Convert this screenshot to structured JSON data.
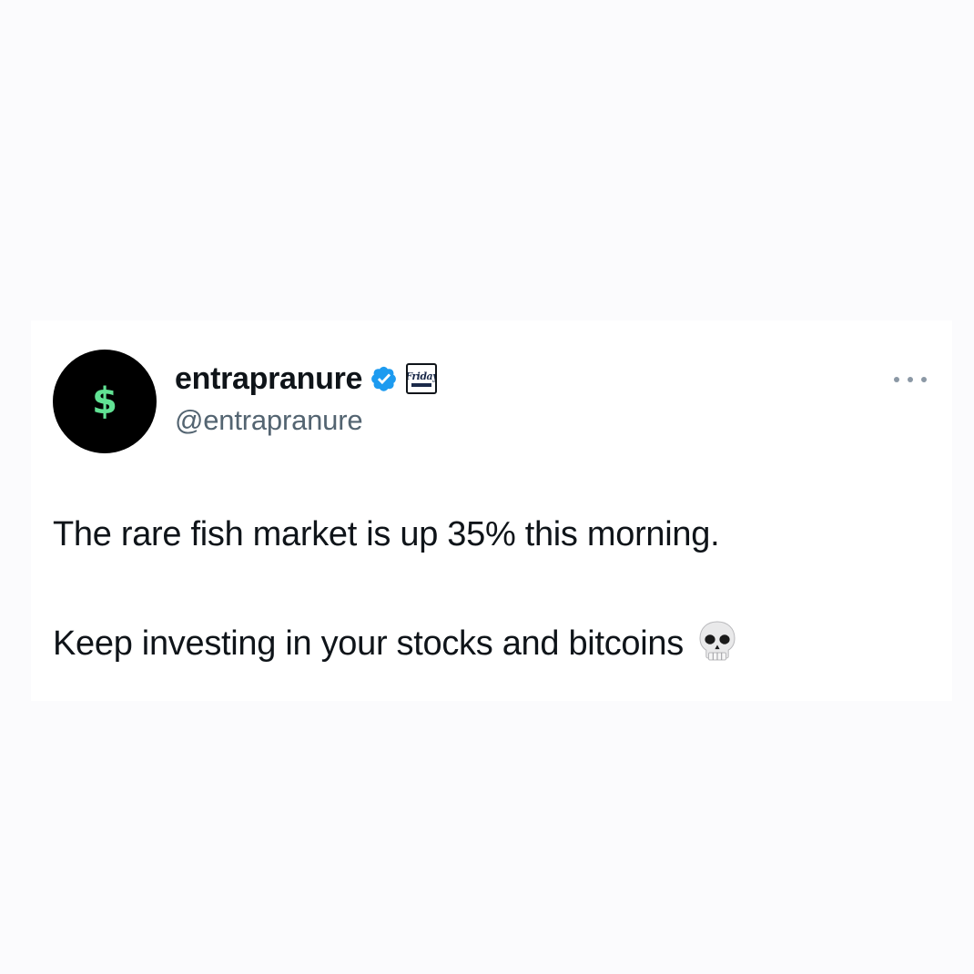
{
  "tweet": {
    "avatar": {
      "glyph": "$",
      "icon": "dollar-sign-icon",
      "background_color": "#000000",
      "glyph_color": "#61e294"
    },
    "display_name": "entrapranure",
    "handle": "@entrapranure",
    "badges": {
      "verified_icon": "verified-check-icon",
      "verified_color": "#1d9bf0",
      "affiliate_icon": "friday-affiliate-badge-icon",
      "affiliate_text": "Friday"
    },
    "more_icon": "more-options-icon",
    "lines": [
      "The rare fish market is up 35% this morning.",
      "Keep investing in your stocks and bitcoins"
    ],
    "trailing_emoji_icon": "skull-icon"
  }
}
